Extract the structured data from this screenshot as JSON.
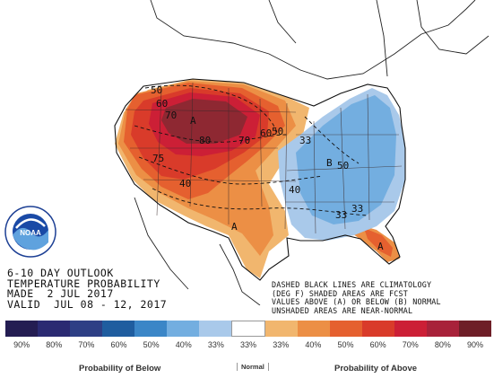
{
  "title": {
    "line1": "6-10 DAY OUTLOOK",
    "line2": "TEMPERATURE PROBABILITY",
    "line3": "MADE  2 JUL 2017",
    "line4": "VALID  JUL 08 - 12, 2017"
  },
  "notes": {
    "line1": "DASHED BLACK LINES ARE CLIMATOLOGY",
    "line2": "(DEG F) SHADED AREAS ARE FCST",
    "line3": "VALUES ABOVE (A) OR BELOW (B) NORMAL",
    "line4": "UNSHADED AREAS ARE NEAR-NORMAL"
  },
  "logo": {
    "text": "NOAA",
    "name": "noaa-logo"
  },
  "map_labels": {
    "a_west": "A",
    "a_south": "A",
    "a_florida": "A",
    "b_east": "B",
    "c50": "50",
    "c60": "60",
    "c70": "70",
    "c75": "75",
    "c80": "80",
    "c60b": "60",
    "c50b": "50",
    "c70b": "70",
    "c40": "40",
    "c33": "33",
    "c50c": "50",
    "c40b": "40",
    "c33b": "33",
    "c33c": "33"
  },
  "legend": {
    "swatches": [
      {
        "label": "90%",
        "color": "#241d52"
      },
      {
        "label": "80%",
        "color": "#2b2a72"
      },
      {
        "label": "70%",
        "color": "#2e3f85"
      },
      {
        "label": "60%",
        "color": "#1f5d9f"
      },
      {
        "label": "50%",
        "color": "#3b86c7"
      },
      {
        "label": "40%",
        "color": "#73aee0"
      },
      {
        "label": "33%",
        "color": "#a9c9ea"
      },
      {
        "label": "33%",
        "color": "#ffffff"
      },
      {
        "label": "33%",
        "color": "#f1b66e"
      },
      {
        "label": "40%",
        "color": "#ec8f45"
      },
      {
        "label": "50%",
        "color": "#e5602f"
      },
      {
        "label": "60%",
        "color": "#d93b2a"
      },
      {
        "label": "70%",
        "color": "#cc1f36"
      },
      {
        "label": "80%",
        "color": "#a8223a"
      },
      {
        "label": "90%",
        "color": "#6e1e27"
      }
    ],
    "below_caption": "Probability of Below",
    "normal_caption": "Normal",
    "above_caption": "Probability of Above"
  }
}
